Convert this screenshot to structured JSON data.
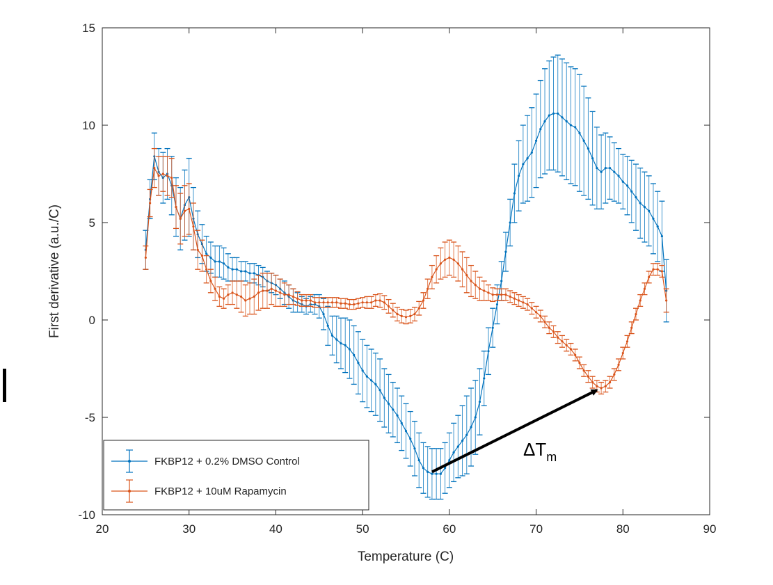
{
  "chart_data": {
    "type": "line",
    "title": "",
    "xlabel": "Temperature (C)",
    "ylabel": "First derivative (a.u./C)",
    "xlim": [
      20,
      90
    ],
    "ylim": [
      -10,
      15
    ],
    "xticks": [
      20,
      30,
      40,
      50,
      60,
      70,
      80,
      90
    ],
    "yticks": [
      -10,
      -5,
      0,
      5,
      10,
      15
    ],
    "grid": false,
    "legend_position": "bottom-left",
    "error_bars": true,
    "series": [
      {
        "name": "FKBP12 + 0.2% DMSO Control",
        "color": "#0072BD",
        "points": [
          [
            25,
            3.6,
            1.0
          ],
          [
            25.5,
            6.2,
            1.0
          ],
          [
            26,
            8.4,
            1.2
          ],
          [
            26.5,
            7.6,
            1.2
          ],
          [
            27,
            7.3,
            1.3
          ],
          [
            27.5,
            7.5,
            1.3
          ],
          [
            28,
            6.9,
            1.5
          ],
          [
            28.5,
            5.8,
            1.5
          ],
          [
            29,
            5.2,
            1.6
          ],
          [
            29.5,
            5.9,
            1.8
          ],
          [
            30,
            6.3,
            2.0
          ],
          [
            30.5,
            5.2,
            1.6
          ],
          [
            31,
            4.4,
            1.2
          ],
          [
            31.5,
            3.9,
            1.0
          ],
          [
            32,
            3.4,
            0.9
          ],
          [
            32.5,
            3.2,
            0.8
          ],
          [
            33,
            3.0,
            0.8
          ],
          [
            33.5,
            3.0,
            0.8
          ],
          [
            34,
            2.9,
            0.8
          ],
          [
            34.5,
            2.7,
            0.7
          ],
          [
            35,
            2.6,
            0.6
          ],
          [
            35.5,
            2.6,
            0.6
          ],
          [
            36,
            2.5,
            0.5
          ],
          [
            36.5,
            2.5,
            0.5
          ],
          [
            37,
            2.4,
            0.5
          ],
          [
            37.5,
            2.4,
            0.5
          ],
          [
            38,
            2.3,
            0.5
          ],
          [
            38.5,
            2.2,
            0.5
          ],
          [
            39,
            2.0,
            0.5
          ],
          [
            39.5,
            1.9,
            0.5
          ],
          [
            40,
            1.8,
            0.5
          ],
          [
            40.5,
            1.6,
            0.5
          ],
          [
            41,
            1.4,
            0.6
          ],
          [
            41.5,
            1.2,
            0.6
          ],
          [
            42,
            1.0,
            0.6
          ],
          [
            42.5,
            0.9,
            0.5
          ],
          [
            43,
            0.8,
            0.4
          ],
          [
            43.5,
            0.7,
            0.4
          ],
          [
            44,
            0.8,
            0.4
          ],
          [
            44.5,
            0.8,
            0.5
          ],
          [
            45,
            0.7,
            0.6
          ],
          [
            45.5,
            0.3,
            0.8
          ],
          [
            46,
            -0.3,
            1.0
          ],
          [
            46.5,
            -0.8,
            1.0
          ],
          [
            47,
            -1.0,
            1.2
          ],
          [
            47.5,
            -1.2,
            1.3
          ],
          [
            48,
            -1.3,
            1.4
          ],
          [
            48.5,
            -1.5,
            1.5
          ],
          [
            49,
            -1.8,
            1.5
          ],
          [
            49.5,
            -2.2,
            1.6
          ],
          [
            50,
            -2.6,
            1.6
          ],
          [
            50.5,
            -2.9,
            1.6
          ],
          [
            51,
            -3.1,
            1.6
          ],
          [
            51.5,
            -3.3,
            1.6
          ],
          [
            52,
            -3.6,
            1.6
          ],
          [
            52.5,
            -4.0,
            1.5
          ],
          [
            53,
            -4.3,
            1.5
          ],
          [
            53.5,
            -4.6,
            1.4
          ],
          [
            54,
            -4.9,
            1.4
          ],
          [
            54.5,
            -5.3,
            1.4
          ],
          [
            55,
            -5.7,
            1.4
          ],
          [
            55.5,
            -6.1,
            1.4
          ],
          [
            56,
            -6.6,
            1.4
          ],
          [
            56.5,
            -7.2,
            1.4
          ],
          [
            57,
            -7.6,
            1.3
          ],
          [
            57.5,
            -7.8,
            1.3
          ],
          [
            58,
            -7.9,
            1.3
          ],
          [
            58.5,
            -7.9,
            1.3
          ],
          [
            59,
            -7.9,
            1.3
          ],
          [
            59.5,
            -7.6,
            1.3
          ],
          [
            60,
            -7.2,
            1.4
          ],
          [
            60.5,
            -6.8,
            1.5
          ],
          [
            61,
            -6.5,
            1.6
          ],
          [
            61.5,
            -6.2,
            1.8
          ],
          [
            62,
            -5.9,
            2.0
          ],
          [
            62.5,
            -5.5,
            2.0
          ],
          [
            63,
            -5.0,
            1.9
          ],
          [
            63.5,
            -4.2,
            1.7
          ],
          [
            64,
            -3.0,
            1.4
          ],
          [
            64.5,
            -1.6,
            1.2
          ],
          [
            65,
            -0.4,
            1.0
          ],
          [
            65.5,
            0.8,
            1.0
          ],
          [
            66,
            2.0,
            1.0
          ],
          [
            66.5,
            3.5,
            1.0
          ],
          [
            67,
            5.0,
            1.2
          ],
          [
            67.5,
            6.5,
            1.5
          ],
          [
            68,
            7.4,
            1.8
          ],
          [
            68.5,
            8.0,
            2.0
          ],
          [
            69,
            8.3,
            2.2
          ],
          [
            69.5,
            8.6,
            2.3
          ],
          [
            70,
            9.2,
            2.4
          ],
          [
            70.5,
            9.8,
            2.5
          ],
          [
            71,
            10.2,
            2.7
          ],
          [
            71.5,
            10.5,
            2.8
          ],
          [
            72,
            10.6,
            2.9
          ],
          [
            72.5,
            10.6,
            3.0
          ],
          [
            73,
            10.4,
            3.0
          ],
          [
            73.5,
            10.2,
            3.0
          ],
          [
            74,
            10.0,
            3.0
          ],
          [
            74.5,
            9.9,
            3.0
          ],
          [
            75,
            9.6,
            3.0
          ],
          [
            75.5,
            9.2,
            2.8
          ],
          [
            76,
            8.8,
            2.6
          ],
          [
            76.5,
            8.3,
            2.4
          ],
          [
            77,
            7.8,
            2.1
          ],
          [
            77.5,
            7.6,
            1.9
          ],
          [
            78,
            7.8,
            1.8
          ],
          [
            78.5,
            7.8,
            1.6
          ],
          [
            79,
            7.6,
            1.5
          ],
          [
            79.5,
            7.4,
            1.4
          ],
          [
            80,
            7.1,
            1.4
          ],
          [
            80.5,
            6.9,
            1.5
          ],
          [
            81,
            6.6,
            1.6
          ],
          [
            81.5,
            6.3,
            1.7
          ],
          [
            82,
            6.0,
            1.8
          ],
          [
            82.5,
            5.8,
            1.8
          ],
          [
            83,
            5.6,
            1.8
          ],
          [
            83.5,
            5.2,
            1.8
          ],
          [
            84,
            4.8,
            1.8
          ],
          [
            84.5,
            4.3,
            1.8
          ],
          [
            85,
            1.5,
            1.6
          ]
        ]
      },
      {
        "name": "FKBP12 + 10uM Rapamycin",
        "color": "#D95319",
        "points": [
          [
            25,
            3.2,
            0.6
          ],
          [
            25.5,
            6.0,
            0.7
          ],
          [
            26,
            7.8,
            1.0
          ],
          [
            26.5,
            7.4,
            1.0
          ],
          [
            27,
            7.5,
            0.9
          ],
          [
            27.5,
            7.4,
            1.0
          ],
          [
            28,
            7.3,
            1.0
          ],
          [
            28.5,
            5.8,
            1.1
          ],
          [
            29,
            5.2,
            1.3
          ],
          [
            29.5,
            5.6,
            1.3
          ],
          [
            30,
            5.7,
            1.3
          ],
          [
            30.5,
            4.8,
            1.2
          ],
          [
            31,
            3.6,
            1.0
          ],
          [
            31.5,
            3.3,
            0.8
          ],
          [
            32,
            2.6,
            0.7
          ],
          [
            32.5,
            2.0,
            0.6
          ],
          [
            33,
            1.6,
            0.6
          ],
          [
            33.5,
            1.2,
            0.5
          ],
          [
            34,
            1.1,
            0.5
          ],
          [
            34.5,
            1.3,
            0.5
          ],
          [
            35,
            1.4,
            0.6
          ],
          [
            35.5,
            1.3,
            0.7
          ],
          [
            36,
            1.2,
            0.8
          ],
          [
            36.5,
            1.0,
            0.8
          ],
          [
            37,
            1.1,
            0.8
          ],
          [
            37.5,
            1.2,
            0.9
          ],
          [
            38,
            1.4,
            0.9
          ],
          [
            38.5,
            1.5,
            0.9
          ],
          [
            39,
            1.5,
            0.9
          ],
          [
            39.5,
            1.6,
            0.8
          ],
          [
            40,
            1.5,
            0.8
          ],
          [
            40.5,
            1.4,
            0.7
          ],
          [
            41,
            1.3,
            0.6
          ],
          [
            41.5,
            1.3,
            0.5
          ],
          [
            42,
            1.2,
            0.4
          ],
          [
            42.5,
            1.1,
            0.35
          ],
          [
            43,
            1.0,
            0.3
          ],
          [
            43.5,
            1.0,
            0.3
          ],
          [
            44,
            1.0,
            0.3
          ],
          [
            44.5,
            0.9,
            0.25
          ],
          [
            45,
            0.9,
            0.25
          ],
          [
            45.5,
            0.9,
            0.25
          ],
          [
            46,
            0.9,
            0.25
          ],
          [
            46.5,
            0.9,
            0.25
          ],
          [
            47,
            0.9,
            0.25
          ],
          [
            47.5,
            0.85,
            0.25
          ],
          [
            48,
            0.85,
            0.25
          ],
          [
            48.5,
            0.8,
            0.25
          ],
          [
            49,
            0.8,
            0.25
          ],
          [
            49.5,
            0.85,
            0.25
          ],
          [
            50,
            0.9,
            0.25
          ],
          [
            50.5,
            0.9,
            0.3
          ],
          [
            51,
            0.9,
            0.3
          ],
          [
            51.5,
            1.0,
            0.3
          ],
          [
            52,
            1.0,
            0.35
          ],
          [
            52.5,
            0.9,
            0.35
          ],
          [
            53,
            0.7,
            0.35
          ],
          [
            53.5,
            0.5,
            0.35
          ],
          [
            54,
            0.3,
            0.35
          ],
          [
            54.5,
            0.2,
            0.35
          ],
          [
            55,
            0.15,
            0.35
          ],
          [
            55.5,
            0.2,
            0.35
          ],
          [
            56,
            0.3,
            0.35
          ],
          [
            56.5,
            0.6,
            0.35
          ],
          [
            57,
            1.0,
            0.4
          ],
          [
            57.5,
            1.6,
            0.5
          ],
          [
            58,
            2.2,
            0.6
          ],
          [
            58.5,
            2.6,
            0.7
          ],
          [
            59,
            2.9,
            0.8
          ],
          [
            59.5,
            3.1,
            0.9
          ],
          [
            60,
            3.2,
            0.9
          ],
          [
            60.5,
            3.1,
            0.9
          ],
          [
            61,
            2.9,
            0.9
          ],
          [
            61.5,
            2.6,
            0.9
          ],
          [
            62,
            2.3,
            0.9
          ],
          [
            62.5,
            2.0,
            0.8
          ],
          [
            63,
            1.8,
            0.7
          ],
          [
            63.5,
            1.6,
            0.6
          ],
          [
            64,
            1.5,
            0.5
          ],
          [
            64.5,
            1.4,
            0.4
          ],
          [
            65,
            1.3,
            0.35
          ],
          [
            65.5,
            1.3,
            0.3
          ],
          [
            66,
            1.3,
            0.3
          ],
          [
            66.5,
            1.3,
            0.3
          ],
          [
            67,
            1.2,
            0.3
          ],
          [
            67.5,
            1.1,
            0.3
          ],
          [
            68,
            1.0,
            0.3
          ],
          [
            68.5,
            0.9,
            0.3
          ],
          [
            69,
            0.8,
            0.3
          ],
          [
            69.5,
            0.6,
            0.3
          ],
          [
            70,
            0.4,
            0.3
          ],
          [
            70.5,
            0.2,
            0.3
          ],
          [
            71,
            -0.1,
            0.3
          ],
          [
            71.5,
            -0.4,
            0.3
          ],
          [
            72,
            -0.6,
            0.3
          ],
          [
            72.5,
            -0.9,
            0.3
          ],
          [
            73,
            -1.1,
            0.3
          ],
          [
            73.5,
            -1.3,
            0.3
          ],
          [
            74,
            -1.5,
            0.3
          ],
          [
            74.5,
            -1.8,
            0.3
          ],
          [
            75,
            -2.2,
            0.3
          ],
          [
            75.5,
            -2.6,
            0.3
          ],
          [
            76,
            -2.9,
            0.3
          ],
          [
            76.5,
            -3.2,
            0.3
          ],
          [
            77,
            -3.4,
            0.3
          ],
          [
            77.5,
            -3.5,
            0.3
          ],
          [
            78,
            -3.4,
            0.3
          ],
          [
            78.5,
            -3.2,
            0.3
          ],
          [
            79,
            -2.8,
            0.3
          ],
          [
            79.5,
            -2.3,
            0.3
          ],
          [
            80,
            -1.7,
            0.3
          ],
          [
            80.5,
            -1.1,
            0.3
          ],
          [
            81,
            -0.4,
            0.3
          ],
          [
            81.5,
            0.3,
            0.3
          ],
          [
            82,
            1.0,
            0.3
          ],
          [
            82.5,
            1.6,
            0.3
          ],
          [
            83,
            2.2,
            0.3
          ],
          [
            83.5,
            2.6,
            0.3
          ],
          [
            84,
            2.6,
            0.3
          ],
          [
            84.5,
            2.5,
            0.3
          ],
          [
            85,
            1.0,
            0.6
          ]
        ]
      }
    ],
    "annotations": [
      {
        "text_main": "ΔT",
        "text_sub": "m",
        "arrow_from": [
          58,
          -7.8
        ],
        "arrow_to": [
          77,
          -3.6
        ]
      }
    ]
  }
}
